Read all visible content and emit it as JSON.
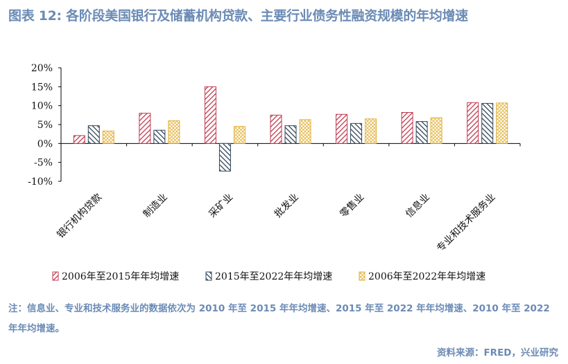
{
  "title": "图表 12: 各阶段美国银行及储蓄机构贷款、主要行业债务性融资规模的年均增速",
  "note": "注：信息业、专业和技术服务业的数据依次为 2010 年至 2015 年年均增速、2015 年至 2022 年年均增速、2010 年至 2022 年年均增速。",
  "source": "资料来源：FRED，兴业研究",
  "chart_data": {
    "type": "bar",
    "title": "",
    "xlabel": "",
    "ylabel": "",
    "ylim": [
      -10,
      20
    ],
    "yticks": [
      "20%",
      "15%",
      "10%",
      "5%",
      "0%",
      "-5%",
      "-10%"
    ],
    "ytick_values": [
      20,
      15,
      10,
      5,
      0,
      -5,
      -10
    ],
    "categories": [
      "银行机构贷款",
      "制造业",
      "采矿业",
      "批发业",
      "零售业",
      "信息业",
      "专业和技术服务业"
    ],
    "series": [
      {
        "name": "2006年至2015年年均增速",
        "values": [
          2.1,
          8.0,
          15.0,
          7.5,
          7.7,
          8.2,
          10.8
        ],
        "color": "#c0394f",
        "pattern": "diagonal-right"
      },
      {
        "name": "2015年至2022年年均增速",
        "values": [
          4.7,
          3.5,
          -7.3,
          4.7,
          5.3,
          5.8,
          10.6
        ],
        "color": "#2f4358",
        "pattern": "diagonal-left"
      },
      {
        "name": "2006年至2022年年均增速",
        "values": [
          3.3,
          6.0,
          4.5,
          6.3,
          6.5,
          6.8,
          10.7
        ],
        "color": "#e2b23a",
        "pattern": "cross"
      }
    ],
    "legend_position": "bottom",
    "grid": false
  }
}
